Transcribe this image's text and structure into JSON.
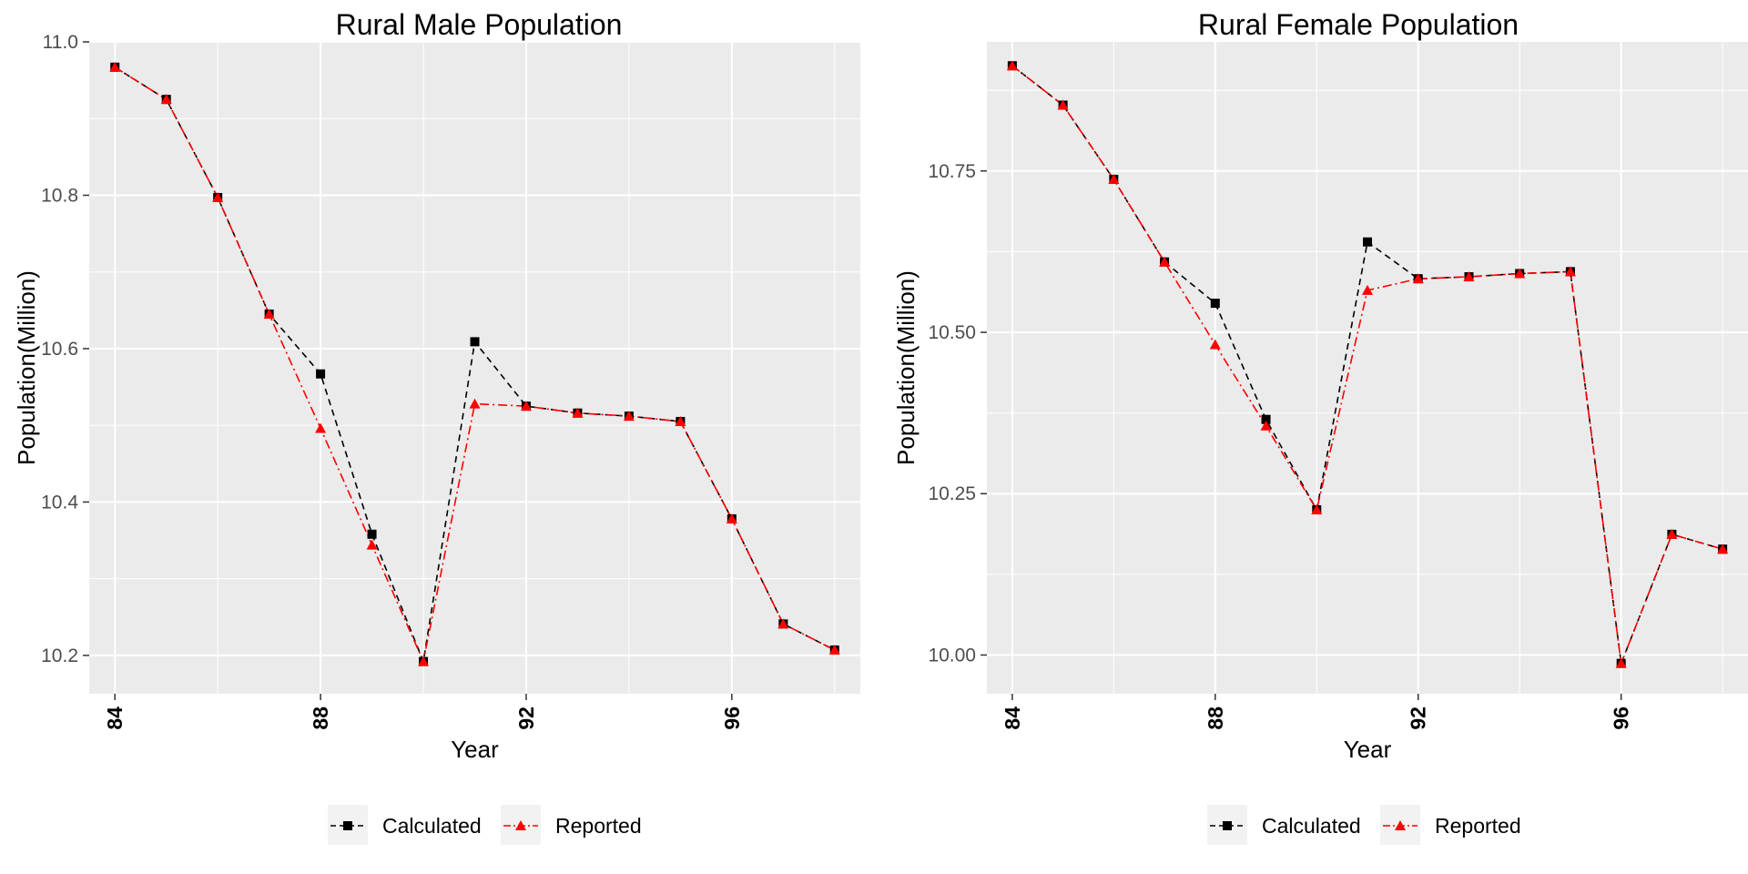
{
  "legend": {
    "items": [
      {
        "label": "Calculated",
        "color": "#000000",
        "shape": "square",
        "dash": "dashed"
      },
      {
        "label": "Reported",
        "color": "#ff0000",
        "shape": "triangle",
        "dash": "dotdash"
      }
    ]
  },
  "chart_data": [
    {
      "type": "line",
      "title": "Rural Male Population",
      "xlabel": "Year",
      "ylabel": "Population(Million)",
      "x": [
        84,
        85,
        86,
        87,
        88,
        89,
        90,
        91,
        92,
        93,
        94,
        95,
        96,
        97,
        98
      ],
      "xlim": [
        83.5,
        98.5
      ],
      "ylim": [
        10.15,
        11.0
      ],
      "x_ticks": [
        84,
        88,
        92,
        96
      ],
      "y_ticks": [
        10.2,
        10.4,
        10.6,
        10.8,
        11.0
      ],
      "y_tick_labels": [
        "10.2",
        "10.4",
        "10.6",
        "10.8",
        "11.0"
      ],
      "grid": true,
      "legend_position": "bottom",
      "series": [
        {
          "name": "Calculated",
          "values": [
            10.967,
            10.925,
            10.797,
            10.645,
            10.567,
            10.358,
            10.192,
            10.609,
            10.525,
            10.516,
            10.512,
            10.505,
            10.378,
            10.241,
            10.207
          ]
        },
        {
          "name": "Reported",
          "values": [
            10.967,
            10.925,
            10.797,
            10.645,
            10.496,
            10.344,
            10.192,
            10.528,
            10.525,
            10.516,
            10.512,
            10.505,
            10.378,
            10.241,
            10.207
          ]
        }
      ]
    },
    {
      "type": "line",
      "title": "Rural Female Population",
      "xlabel": "Year",
      "ylabel": "Population(Million)",
      "x": [
        84,
        85,
        86,
        87,
        88,
        89,
        90,
        91,
        92,
        93,
        94,
        95,
        96,
        97,
        98
      ],
      "xlim": [
        83.5,
        98.5
      ],
      "ylim": [
        9.94,
        10.95
      ],
      "x_ticks": [
        84,
        88,
        92,
        96
      ],
      "y_ticks": [
        10.0,
        10.25,
        10.5,
        10.75
      ],
      "y_tick_labels": [
        "10.00",
        "10.25",
        "10.50",
        "10.75"
      ],
      "grid": true,
      "legend_position": "bottom",
      "series": [
        {
          "name": "Calculated",
          "values": [
            10.913,
            10.852,
            10.737,
            10.609,
            10.545,
            10.365,
            10.225,
            10.64,
            10.583,
            10.586,
            10.591,
            10.594,
            9.987,
            10.187,
            10.164
          ]
        },
        {
          "name": "Reported",
          "values": [
            10.913,
            10.852,
            10.737,
            10.609,
            10.481,
            10.355,
            10.225,
            10.565,
            10.583,
            10.586,
            10.591,
            10.594,
            9.987,
            10.187,
            10.164
          ]
        }
      ]
    }
  ]
}
